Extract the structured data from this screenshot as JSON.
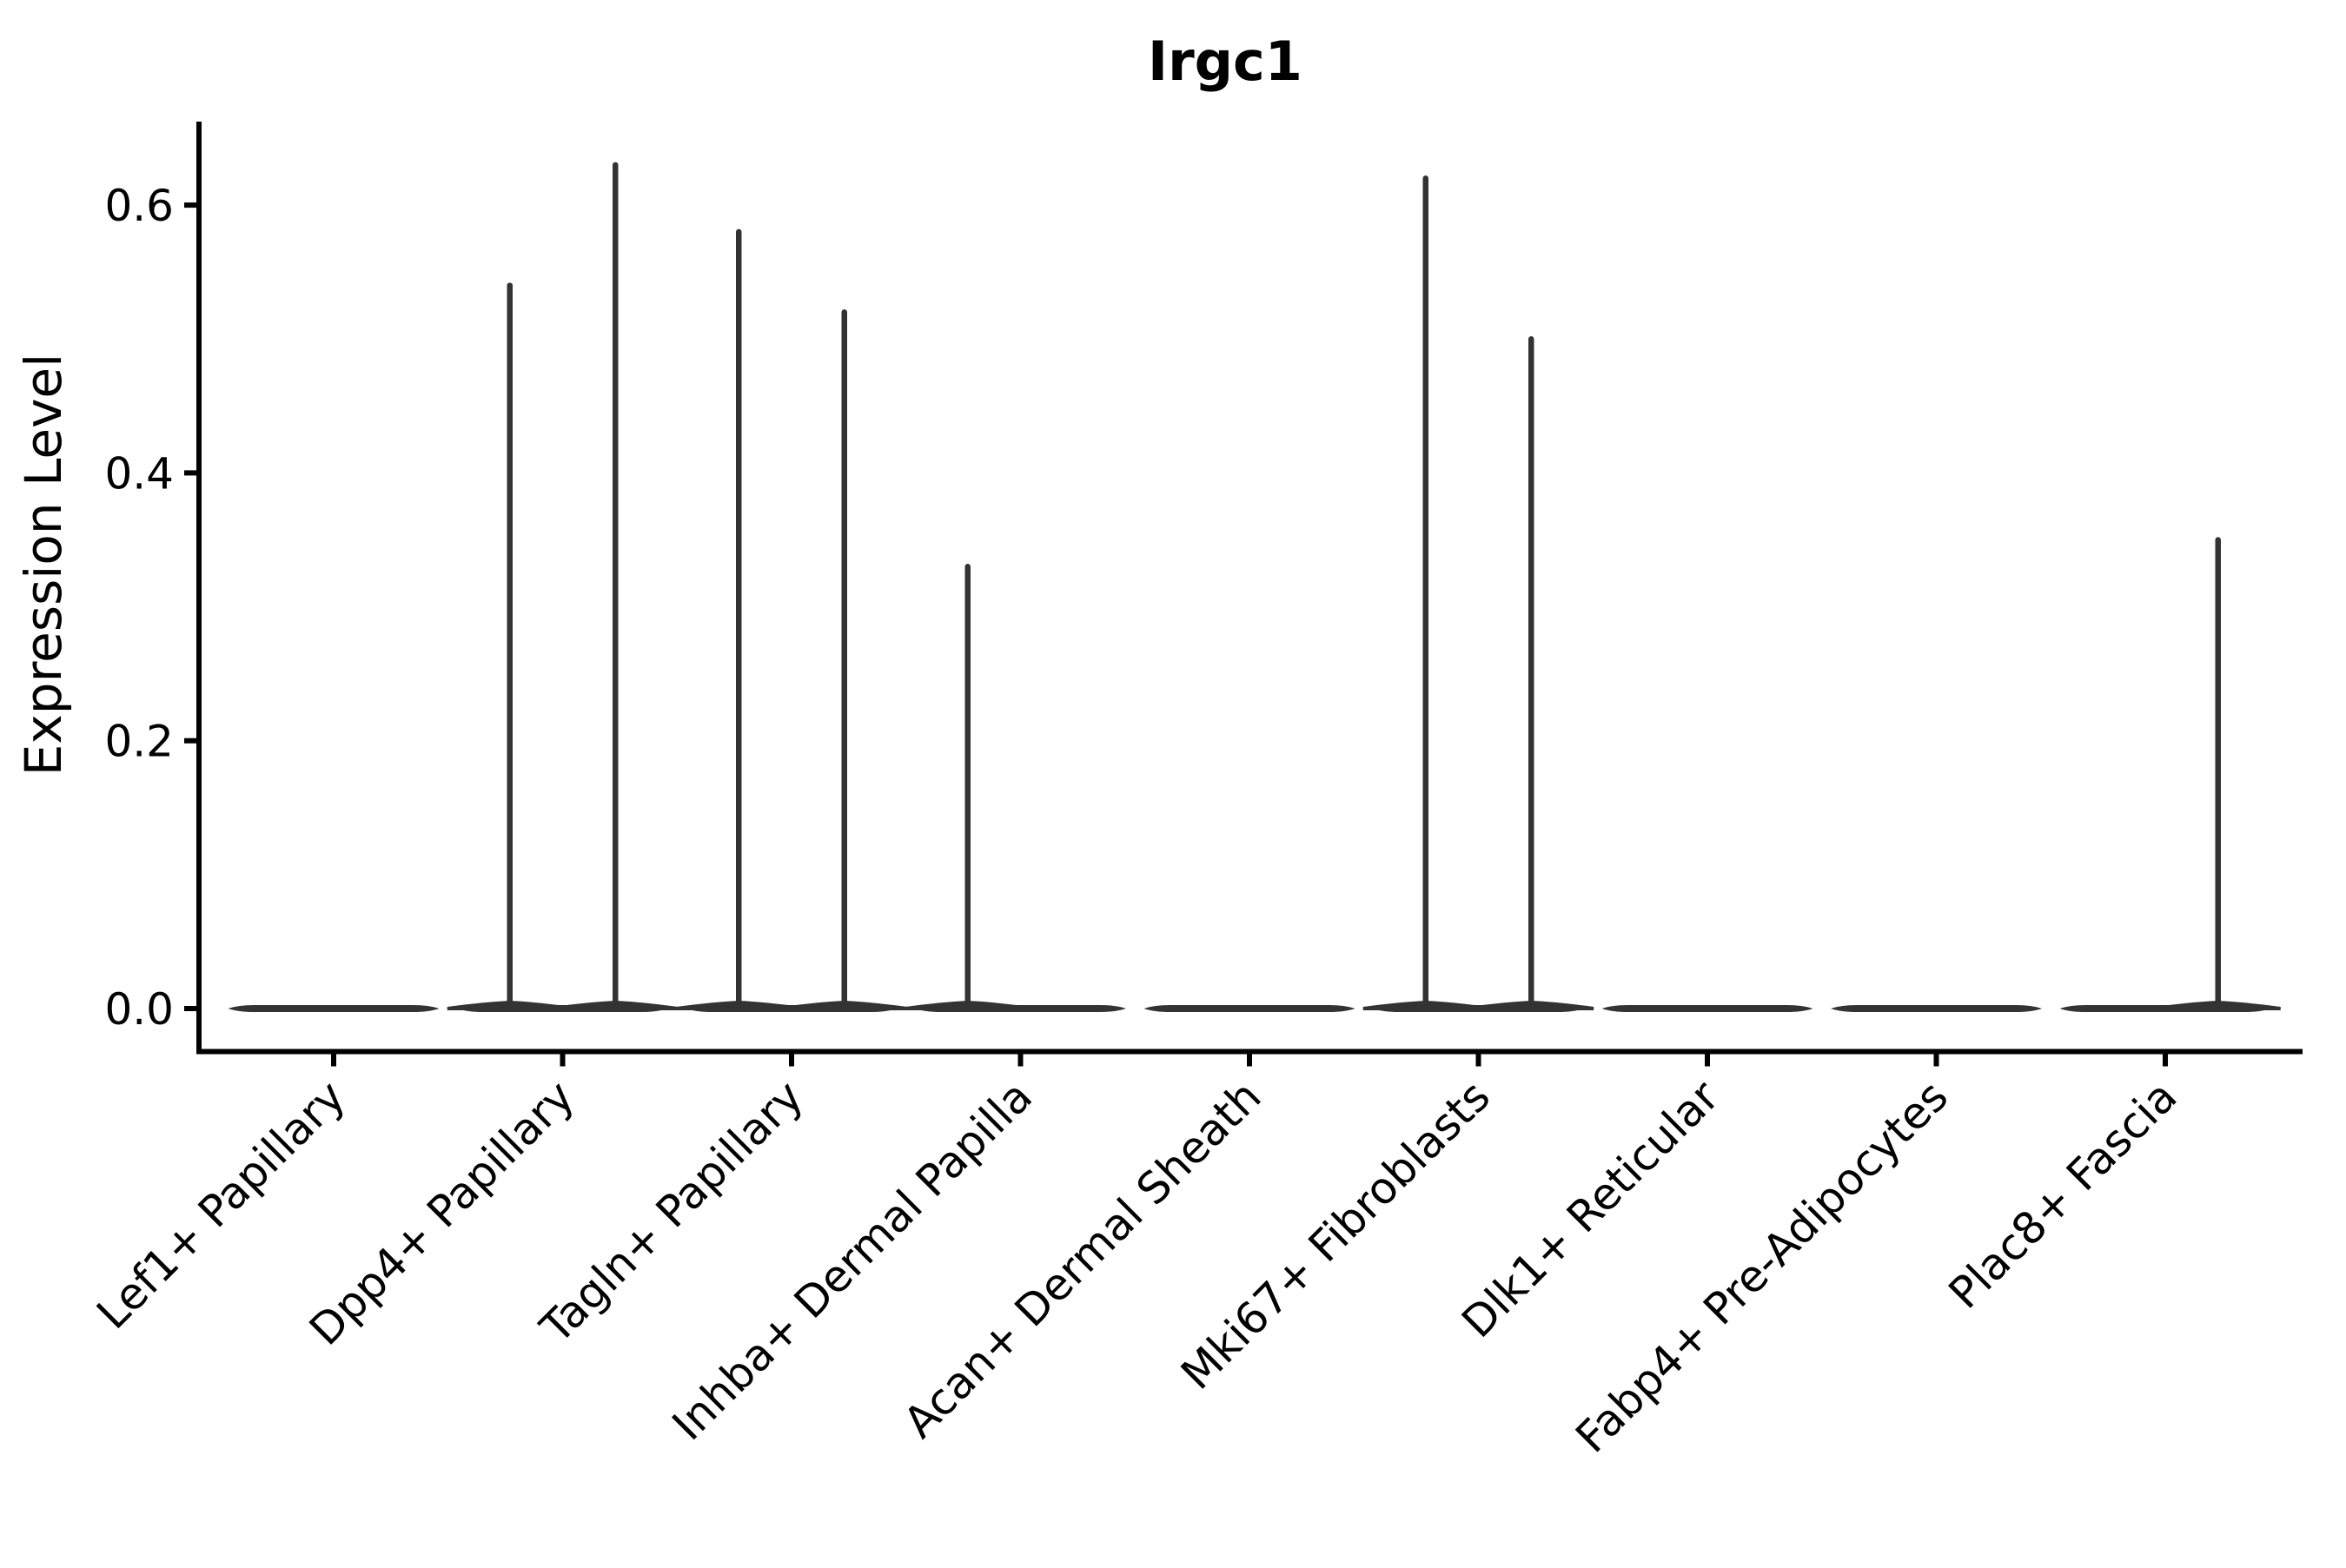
{
  "figure": {
    "background": "#ffffff"
  },
  "chart_data": {
    "type": "violin",
    "title": "Irgc1",
    "ylabel": "Expression Level",
    "xlabel": "",
    "yticks": [
      "0.0",
      "0.2",
      "0.4",
      "0.6"
    ],
    "ylim": [
      -0.032,
      0.662
    ],
    "grid": false,
    "legend": "none",
    "x_tick_rotation": 45,
    "violins_per_category": 2,
    "categories": [
      "Lef1+ Papillary",
      "Dpp4+ Papillary",
      "Tagln+ Papillary",
      "Inhba+ Dermal Papilla",
      "Acan+ Dermal Sheath",
      "Mki67+ Fibroblasts",
      "Dlk1+ Reticular",
      "Fabp4+ Pre-Adipocytes",
      "Plac8+ Fascia"
    ],
    "series": [
      {
        "name": "left-violin",
        "max_expression": [
          0,
          0.54,
          0.58,
          0.33,
          0,
          0.62,
          0,
          0,
          0
        ]
      },
      {
        "name": "right-violin",
        "max_expression": [
          0,
          0.63,
          0.52,
          0,
          0,
          0.5,
          0,
          0,
          0.35
        ]
      }
    ],
    "baseline_value": 0.0,
    "colors": {
      "violin": "#333333",
      "axis": "#000000",
      "text": "#000000",
      "background": "#ffffff"
    }
  }
}
